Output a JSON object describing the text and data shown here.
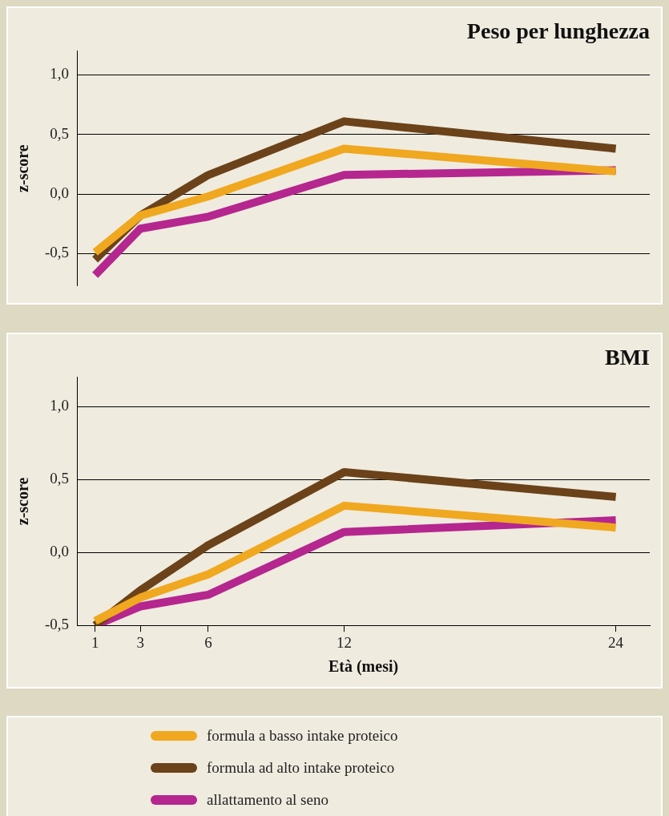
{
  "chart_data": [
    {
      "type": "line",
      "title": "Peso per lunghezza",
      "ylabel": "z-score",
      "xlim": [
        0.2,
        25.5
      ],
      "ylim": [
        -0.77,
        1.2
      ],
      "yticks": [
        {
          "value": 1,
          "label": "1,0"
        },
        {
          "value": 0.5,
          "label": "0,5"
        },
        {
          "value": 0,
          "label": "0,0"
        },
        {
          "value": -0.5,
          "label": "-0,5"
        }
      ],
      "tick_labels": "y",
      "grid": "y",
      "marker": "none",
      "line_style": "solid",
      "x": [
        1,
        3,
        6,
        12,
        24
      ],
      "series": [
        {
          "color": "#f0a820",
          "values": [
            -0.49,
            -0.18,
            -0.02,
            0.38,
            0.19
          ]
        },
        {
          "color": "#6b4219",
          "values": [
            -0.55,
            -0.18,
            0.16,
            0.61,
            0.38
          ]
        },
        {
          "color": "#b5268f",
          "values": [
            -0.68,
            -0.29,
            -0.19,
            0.16,
            0.2
          ]
        }
      ]
    },
    {
      "type": "line",
      "title": "BMI",
      "ylabel": "z-score",
      "xlabel": "Età (mesi)",
      "xlim": [
        0.2,
        25.5
      ],
      "xticks": [
        1,
        3,
        6,
        12,
        24
      ],
      "ylim": [
        -0.5,
        1.2
      ],
      "yticks": [
        {
          "value": 1,
          "label": "1,0"
        },
        {
          "value": 0.5,
          "label": "0,5"
        },
        {
          "value": 0,
          "label": "0,0"
        },
        {
          "value": -0.5,
          "label": "-0,5"
        }
      ],
      "grid": "y",
      "marker": "none",
      "line_style": "solid",
      "legend": "bottom",
      "x": [
        1,
        3,
        6,
        12,
        24
      ],
      "series": [
        {
          "name": "formula a basso intake proteico",
          "color": "#f0a820",
          "values": [
            -0.47,
            -0.31,
            -0.15,
            0.32,
            0.17
          ]
        },
        {
          "name": "formula ad alto intake proteico",
          "color": "#6b4219",
          "values": [
            -0.5,
            -0.26,
            0.05,
            0.55,
            0.38
          ]
        },
        {
          "name": "allattamento al seno",
          "color": "#b5268f",
          "values": [
            -0.5,
            -0.37,
            -0.29,
            0.14,
            0.22
          ]
        }
      ]
    }
  ]
}
